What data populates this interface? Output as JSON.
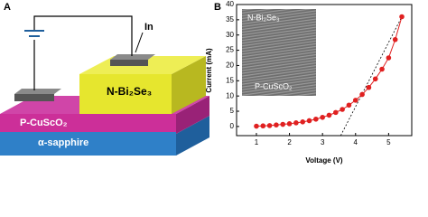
{
  "panel_a": {
    "label": "A",
    "electrode": "In",
    "layers": [
      "N-Bi₂Se₃",
      "P-CuScO₂",
      "α-sapphire"
    ]
  },
  "chart_data": {
    "type": "scatter",
    "panel_label": "B",
    "x_label": "Voltage (V)",
    "y_label": "Current (mA)",
    "x": [
      1.0,
      1.2,
      1.4,
      1.6,
      1.8,
      2.0,
      2.2,
      2.4,
      2.6,
      2.8,
      3.0,
      3.2,
      3.4,
      3.6,
      3.8,
      4.0,
      4.2,
      4.4,
      4.6,
      4.8,
      5.0,
      5.2,
      5.4
    ],
    "values": [
      0.1,
      0.2,
      0.3,
      0.5,
      0.7,
      0.9,
      1.2,
      1.5,
      1.9,
      2.4,
      3.0,
      3.7,
      4.6,
      5.6,
      7.0,
      8.6,
      10.5,
      12.8,
      15.6,
      18.8,
      22.5,
      28.5,
      36
    ],
    "color": "#e02020",
    "fit_line": {
      "x": [
        3.55,
        5.4
      ],
      "y": [
        -3,
        36
      ]
    },
    "xlim": [
      0.4,
      5.7
    ],
    "xticks": [
      1,
      2,
      3,
      4,
      5
    ],
    "ylim": [
      -3,
      40
    ],
    "yticks": [
      0,
      5,
      10,
      15,
      20,
      25,
      30,
      35,
      40
    ],
    "inset_labels": [
      "N-Bi₂Se₃",
      "P-CuScO₂"
    ]
  }
}
